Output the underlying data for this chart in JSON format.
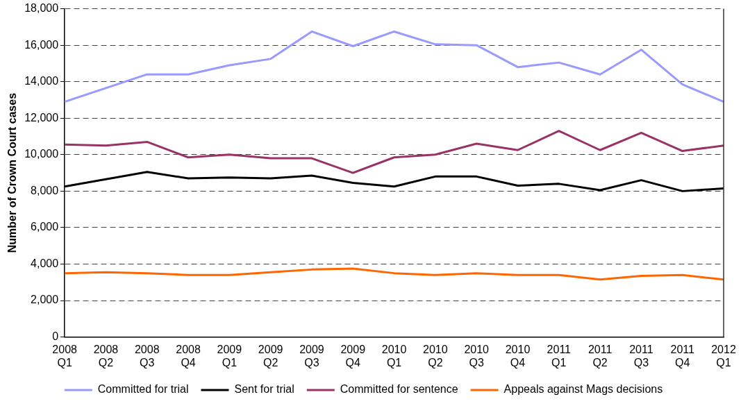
{
  "chart_data": {
    "type": "line",
    "ylabel": "Number of Crown Court cases",
    "categories": [
      "2008 Q1",
      "2008 Q2",
      "2008 Q3",
      "2008 Q4",
      "2009 Q1",
      "2009 Q2",
      "2009 Q3",
      "2009 Q4",
      "2010 Q1",
      "2010 Q2",
      "2010 Q3",
      "2010 Q4",
      "2011 Q1",
      "2011 Q2",
      "2011 Q3",
      "2011 Q4",
      "2012 Q1"
    ],
    "series": [
      {
        "name": "Committed for trial",
        "color": "#9999ff",
        "values": [
          12900,
          13650,
          14400,
          14400,
          14900,
          15250,
          16750,
          15950,
          16750,
          16050,
          16000,
          14800,
          15050,
          14400,
          15750,
          13850,
          12900
        ]
      },
      {
        "name": "Sent for trial",
        "color": "#000000",
        "values": [
          8250,
          8650,
          9050,
          8700,
          8750,
          8700,
          8850,
          8450,
          8250,
          8800,
          8800,
          8300,
          8400,
          8050,
          8600,
          8000,
          8150
        ]
      },
      {
        "name": "Committed for sentence",
        "color": "#993366",
        "values": [
          10550,
          10500,
          10700,
          9850,
          10000,
          9800,
          9800,
          9000,
          9850,
          10000,
          10600,
          10250,
          11300,
          10250,
          11200,
          10200,
          10500
        ]
      },
      {
        "name": "Appeals against Mags decisions",
        "color": "#ff6600",
        "values": [
          3500,
          3550,
          3500,
          3400,
          3400,
          3550,
          3700,
          3750,
          3500,
          3400,
          3500,
          3400,
          3400,
          3150,
          3350,
          3400,
          3150
        ]
      }
    ],
    "ylim": [
      0,
      18000
    ],
    "yticks": [
      0,
      {
        "value": 2000,
        "label": "2,000"
      },
      {
        "value": 4000,
        "label": "4,000"
      },
      {
        "value": 6000,
        "label": "6,000"
      },
      {
        "value": 8000,
        "label": "8,000"
      },
      {
        "value": 10000,
        "label": "10,000"
      },
      {
        "value": 12000,
        "label": "12,000"
      },
      {
        "value": 14000,
        "label": "14,000"
      },
      {
        "value": 16000,
        "label": "16,000"
      },
      {
        "value": 18000,
        "label": "18,000"
      }
    ],
    "grid": "y",
    "legend": "bottom",
    "marker": "none",
    "line_style": "solid"
  }
}
